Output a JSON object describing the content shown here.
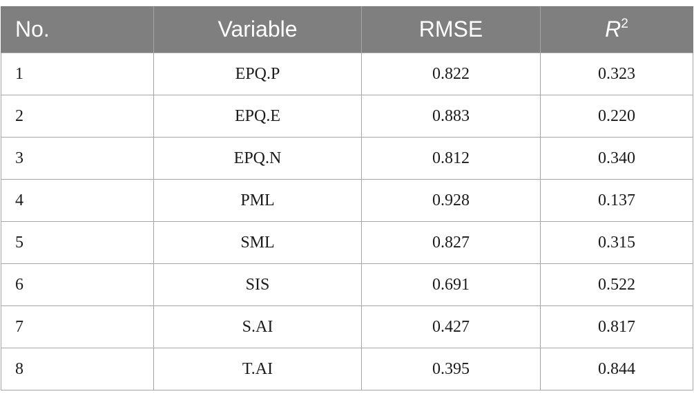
{
  "table": {
    "headers": [
      "No.",
      "Variable",
      "RMSE",
      "R",
      "2"
    ],
    "rows": [
      {
        "no": "1",
        "variable": "EPQ.P",
        "rmse": "0.822",
        "r2": "0.323"
      },
      {
        "no": "2",
        "variable": "EPQ.E",
        "rmse": "0.883",
        "r2": "0.220"
      },
      {
        "no": "3",
        "variable": "EPQ.N",
        "rmse": "0.812",
        "r2": "0.340"
      },
      {
        "no": "4",
        "variable": "PML",
        "rmse": "0.928",
        "r2": "0.137"
      },
      {
        "no": "5",
        "variable": "SML",
        "rmse": "0.827",
        "r2": "0.315"
      },
      {
        "no": "6",
        "variable": "SIS",
        "rmse": "0.691",
        "r2": "0.522"
      },
      {
        "no": "7",
        "variable": "S.AI",
        "rmse": "0.427",
        "r2": "0.817"
      },
      {
        "no": "8",
        "variable": "T.AI",
        "rmse": "0.395",
        "r2": "0.844"
      }
    ]
  },
  "colors": {
    "header_bg": "#7f7f7f",
    "header_text": "#ffffff",
    "border": "#a6a6a6"
  }
}
